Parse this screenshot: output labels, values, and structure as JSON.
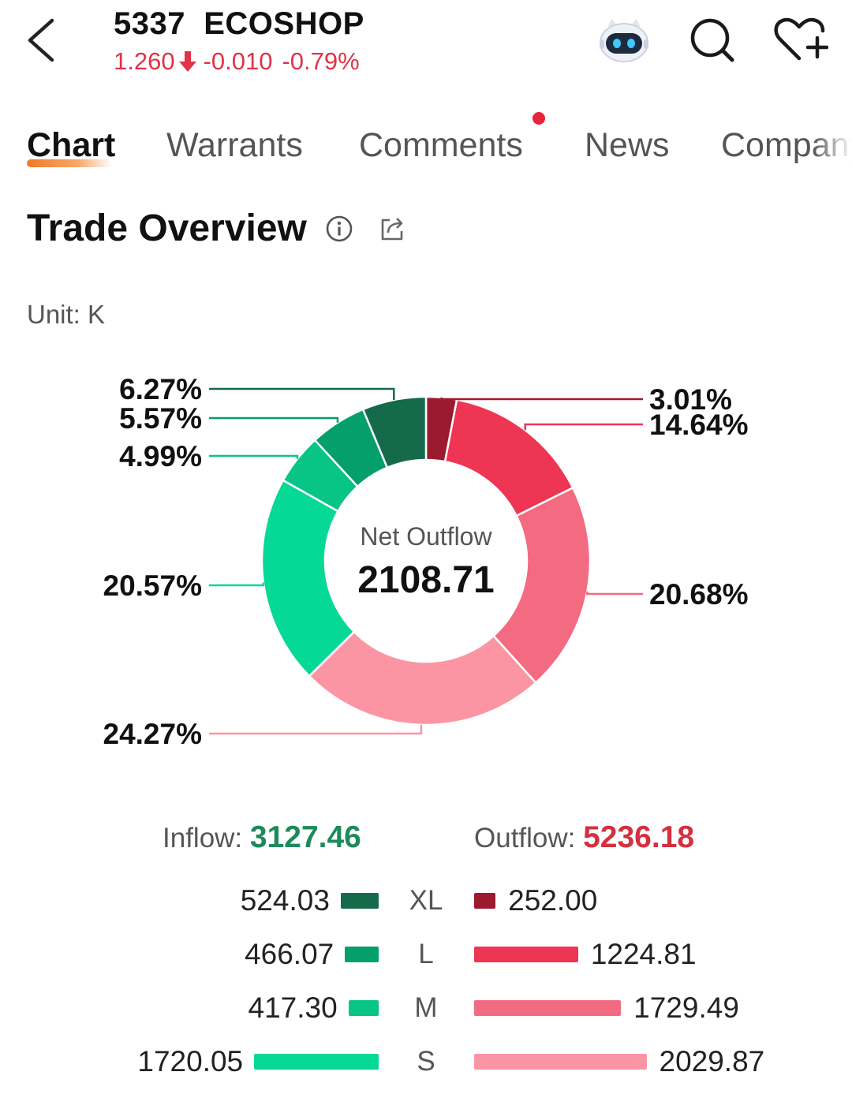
{
  "header": {
    "title": "5337  ECOSHOP",
    "price": "1.260",
    "change": "-0.010",
    "change_pct": "-0.79%"
  },
  "tabs": [
    {
      "label": "Chart",
      "active": true
    },
    {
      "label": "Warrants"
    },
    {
      "label": "Comments",
      "has_dot": true
    },
    {
      "label": "News"
    },
    {
      "label": "Company"
    }
  ],
  "section": {
    "title": "Trade Overview",
    "unit": "Unit: K"
  },
  "colors": {
    "inflow_xl": "#146a4a",
    "inflow_l": "#049f6b",
    "inflow_m": "#08c485",
    "inflow_s": "#06d996",
    "outflow_xl": "#9c1a2d",
    "outflow_l": "#ee3654",
    "outflow_m": "#f26b80",
    "outflow_s": "#fb95a4",
    "positive": "#1e8a5b",
    "negative": "#d4303f",
    "accent": "#ef7a26"
  },
  "chart_data": {
    "type": "pie",
    "donut": true,
    "center_label": "Net Outflow",
    "center_value": "2108.71",
    "slices": [
      {
        "order": "XL",
        "side": "outflow",
        "percent": 3.01,
        "label": "3.01%"
      },
      {
        "order": "L",
        "side": "outflow",
        "percent": 14.64,
        "label": "14.64%"
      },
      {
        "order": "M",
        "side": "outflow",
        "percent": 20.68,
        "label": "20.68%"
      },
      {
        "order": "S",
        "side": "outflow",
        "percent": 24.27,
        "label": "24.27%"
      },
      {
        "order": "S",
        "side": "inflow",
        "percent": 20.57,
        "label": "20.57%"
      },
      {
        "order": "M",
        "side": "inflow",
        "percent": 4.99,
        "label": "4.99%"
      },
      {
        "order": "L",
        "side": "inflow",
        "percent": 5.57,
        "label": "5.57%"
      },
      {
        "order": "XL",
        "side": "inflow",
        "percent": 6.27,
        "label": "6.27%"
      }
    ]
  },
  "totals": {
    "inflow_label": "Inflow: ",
    "inflow_value": "3127.46",
    "outflow_label": "Outflow: ",
    "outflow_value": "5236.18"
  },
  "breakdown": [
    {
      "size": "XL",
      "inflow": 524.03,
      "inflow_text": "524.03",
      "outflow": 252.0,
      "outflow_text": "252.00"
    },
    {
      "size": "L",
      "inflow": 466.07,
      "inflow_text": "466.07",
      "outflow": 1224.81,
      "outflow_text": "1224.81"
    },
    {
      "size": "M",
      "inflow": 417.3,
      "inflow_text": "417.30",
      "outflow": 1729.49,
      "outflow_text": "1729.49"
    },
    {
      "size": "S",
      "inflow": 1720.05,
      "inflow_text": "1720.05",
      "outflow": 2029.87,
      "outflow_text": "2029.87"
    }
  ]
}
